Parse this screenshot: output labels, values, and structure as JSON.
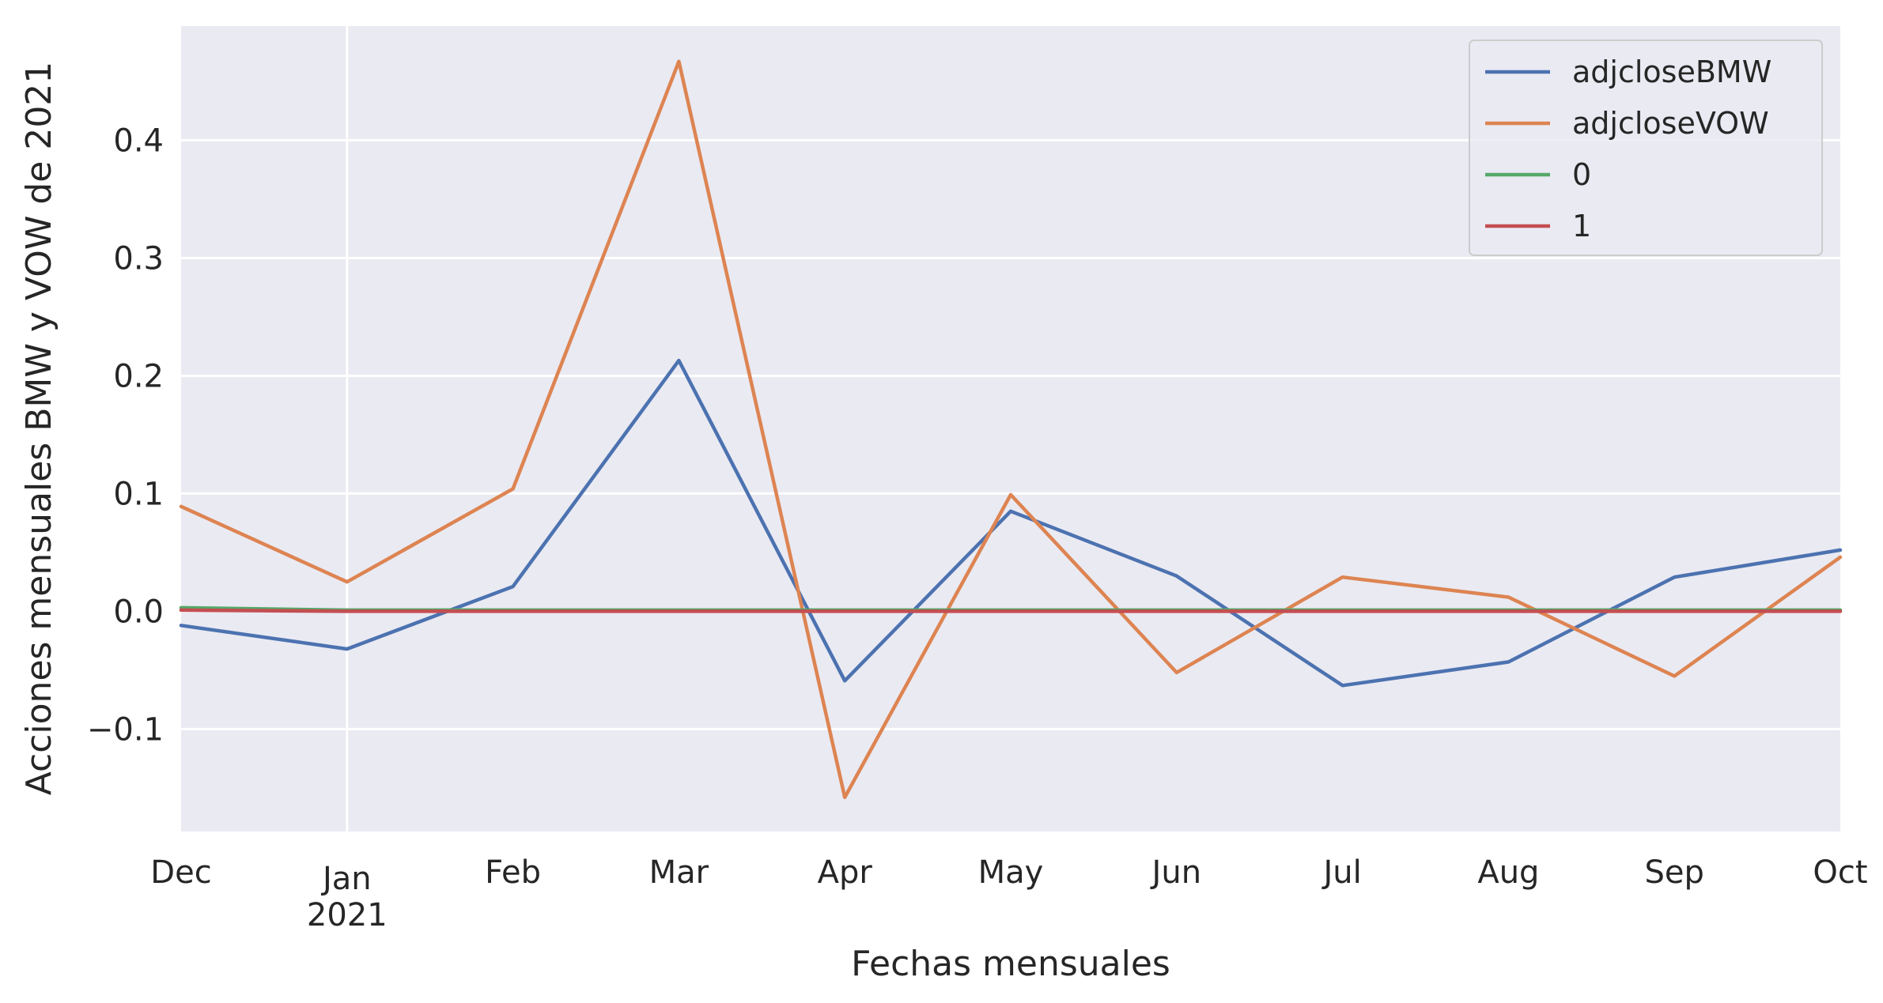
{
  "chart_data": {
    "type": "line",
    "xlabel": "Fechas mensuales",
    "ylabel": "Acciones mensuales BMW y VOW de 2021",
    "x": [
      "2020-12",
      "2021-01",
      "2021-02",
      "2021-03",
      "2021-04",
      "2021-05",
      "2021-06",
      "2021-07",
      "2021-08",
      "2021-09",
      "2021-10"
    ],
    "x_ticks": [
      {
        "line1": "Dec",
        "line2": ""
      },
      {
        "line1": "Jan",
        "line2": "2021"
      },
      {
        "line1": "Feb",
        "line2": ""
      },
      {
        "line1": "Mar",
        "line2": ""
      },
      {
        "line1": "Apr",
        "line2": ""
      },
      {
        "line1": "May",
        "line2": ""
      },
      {
        "line1": "Jun",
        "line2": ""
      },
      {
        "line1": "Jul",
        "line2": ""
      },
      {
        "line1": "Aug",
        "line2": ""
      },
      {
        "line1": "Sep",
        "line2": ""
      },
      {
        "line1": "Oct",
        "line2": ""
      }
    ],
    "y_ticks": [
      "−0.1",
      "0.0",
      "0.1",
      "0.2",
      "0.3",
      "0.4"
    ],
    "y_tick_values": [
      -0.1,
      0.0,
      0.1,
      0.2,
      0.3,
      0.4
    ],
    "ylim": [
      -0.187,
      0.497
    ],
    "grid": true,
    "legend_position": "top-right",
    "series": [
      {
        "name": "adjcloseBMW",
        "color": "#4c72b0",
        "values": [
          -0.012,
          -0.032,
          0.021,
          0.213,
          -0.059,
          0.085,
          0.03,
          -0.063,
          -0.043,
          0.029,
          0.052
        ]
      },
      {
        "name": "adjcloseVOW",
        "color": "#dd8452",
        "values": [
          0.089,
          0.025,
          0.104,
          0.467,
          -0.158,
          0.099,
          -0.052,
          0.029,
          0.012,
          -0.055,
          0.046
        ]
      },
      {
        "name": "0",
        "color": "#55a868",
        "values": [
          0.003,
          0.001,
          0.001,
          0.001,
          0.001,
          0.001,
          0.001,
          0.001,
          0.001,
          0.001,
          0.001
        ]
      },
      {
        "name": "1",
        "color": "#c44e52",
        "values": [
          0.001,
          0.0,
          0.0,
          0.0,
          0.0,
          0.0,
          0.0,
          0.0,
          0.0,
          0.0,
          0.0
        ]
      }
    ]
  }
}
